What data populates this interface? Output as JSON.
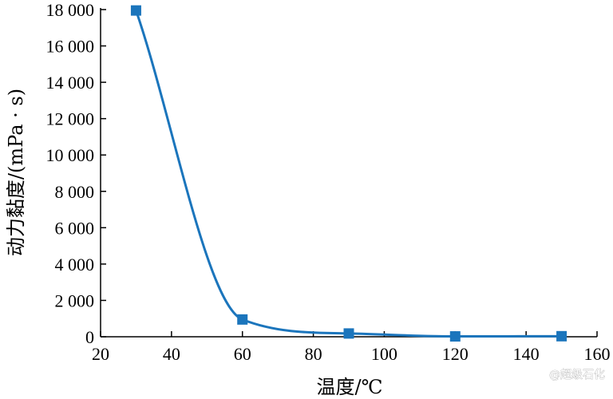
{
  "chart_data": {
    "type": "line",
    "title": "",
    "xlabel": "温度/℃",
    "ylabel": "动力黏度/(mPa · s)",
    "xlim": [
      20,
      160
    ],
    "ylim": [
      0,
      18000
    ],
    "x_ticks": [
      20,
      40,
      60,
      80,
      100,
      120,
      140,
      160
    ],
    "x_tick_labels": [
      "20",
      "40",
      "60",
      "80",
      "100",
      "120",
      "140",
      "160"
    ],
    "y_ticks": [
      0,
      2000,
      4000,
      6000,
      8000,
      10000,
      12000,
      14000,
      16000,
      18000
    ],
    "y_tick_labels": [
      "0",
      "2 000",
      "4 000",
      "6 000",
      "8 000",
      "10 000",
      "12 000",
      "14 000",
      "16 000",
      "18 000"
    ],
    "grid": false,
    "series": [
      {
        "x": [
          30,
          60,
          90,
          120,
          150
        ],
        "y": [
          17950,
          950,
          180,
          20,
          30
        ],
        "color": "#1b75bc",
        "marker": "square",
        "curve": "smooth"
      }
    ]
  },
  "watermark": "@超级石化"
}
